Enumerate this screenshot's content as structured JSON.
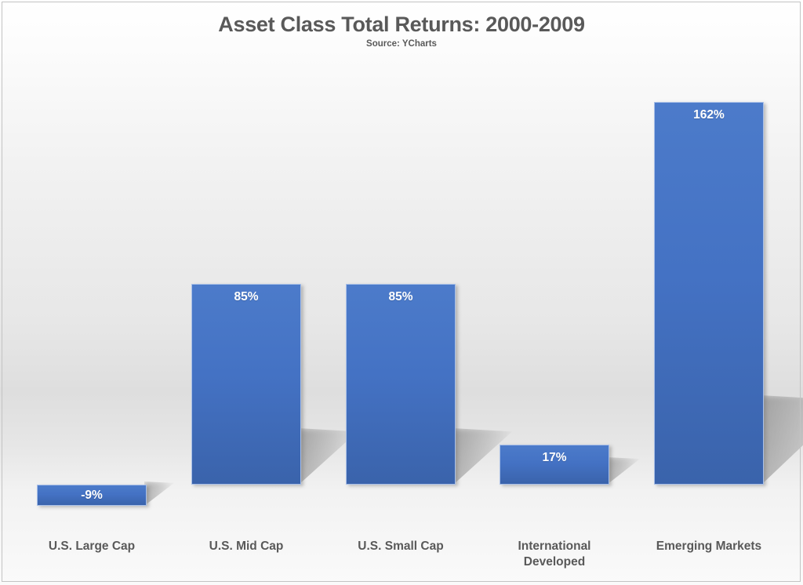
{
  "chart_data": {
    "type": "bar",
    "title": "Asset Class Total Returns: 2000-2009",
    "subtitle": "Source: YCharts",
    "categories": [
      "U.S. Large Cap",
      "U.S. Mid Cap",
      "U.S. Small Cap",
      "International Developed",
      "Emerging Markets"
    ],
    "values": [
      -9,
      85,
      85,
      17,
      162
    ],
    "value_labels": [
      "-9%",
      "85%",
      "85%",
      "17%",
      "162%"
    ],
    "xlabel": "",
    "ylabel": "",
    "ylim": [
      -30,
      175
    ],
    "grid": false,
    "legend": false,
    "value_label_position": "inside-top",
    "colors": {
      "bar_fill": "#4472C4",
      "bar_fill_gradient_top": "#4C7BCA",
      "bar_fill_gradient_bottom": "#3A63AB",
      "bar_border": "#A9C0E8",
      "value_label": "#FFFFFF",
      "category_label": "#595959",
      "title_text": "#595959",
      "frame_border": "#C3C3C3",
      "background_floor": "#DEDEDE"
    }
  }
}
